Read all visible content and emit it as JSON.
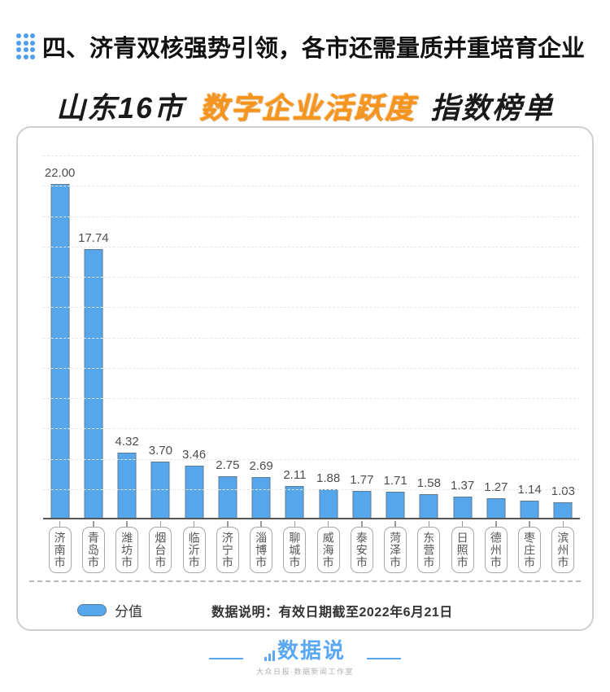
{
  "header": {
    "icon": "dots-grid-icon",
    "title": "四、济青双核强势引领，各市还需量质并重培育企业"
  },
  "title": {
    "prefix": "山东16市",
    "highlight": "数字企业活跃度",
    "suffix": "指数榜单",
    "highlight_color": "#F7941D"
  },
  "chart_data": {
    "type": "bar",
    "title": "山东16市数字企业活跃度指数榜单",
    "categories": [
      "济南市",
      "青岛市",
      "潍坊市",
      "烟台市",
      "临沂市",
      "济宁市",
      "淄博市",
      "聊城市",
      "威海市",
      "泰安市",
      "菏泽市",
      "东营市",
      "日照市",
      "德州市",
      "枣庄市",
      "滨州市"
    ],
    "values": [
      22.0,
      17.74,
      4.32,
      3.7,
      3.46,
      2.75,
      2.69,
      2.11,
      1.88,
      1.77,
      1.71,
      1.58,
      1.37,
      1.27,
      1.14,
      1.03
    ],
    "value_labels": [
      "22.00",
      "17.74",
      "4.32",
      "3.70",
      "3.46",
      "2.75",
      "2.69",
      "2.11",
      "1.88",
      "1.77",
      "1.71",
      "1.58",
      "1.37",
      "1.27",
      "1.14",
      "1.03"
    ],
    "series_name": "分值",
    "xlabel": "",
    "ylabel": "",
    "ylim": [
      0,
      24
    ],
    "grid_step": 2,
    "grid_style": "dashed",
    "bar_color": "#55a6ea",
    "legend_position": "bottom-left"
  },
  "legend": {
    "label": "分值"
  },
  "note": "数据说明：有效日期截至2022年6月21日",
  "footer": {
    "logo": "数据说",
    "subtitle": "大众日报·数据新闻工作室"
  }
}
